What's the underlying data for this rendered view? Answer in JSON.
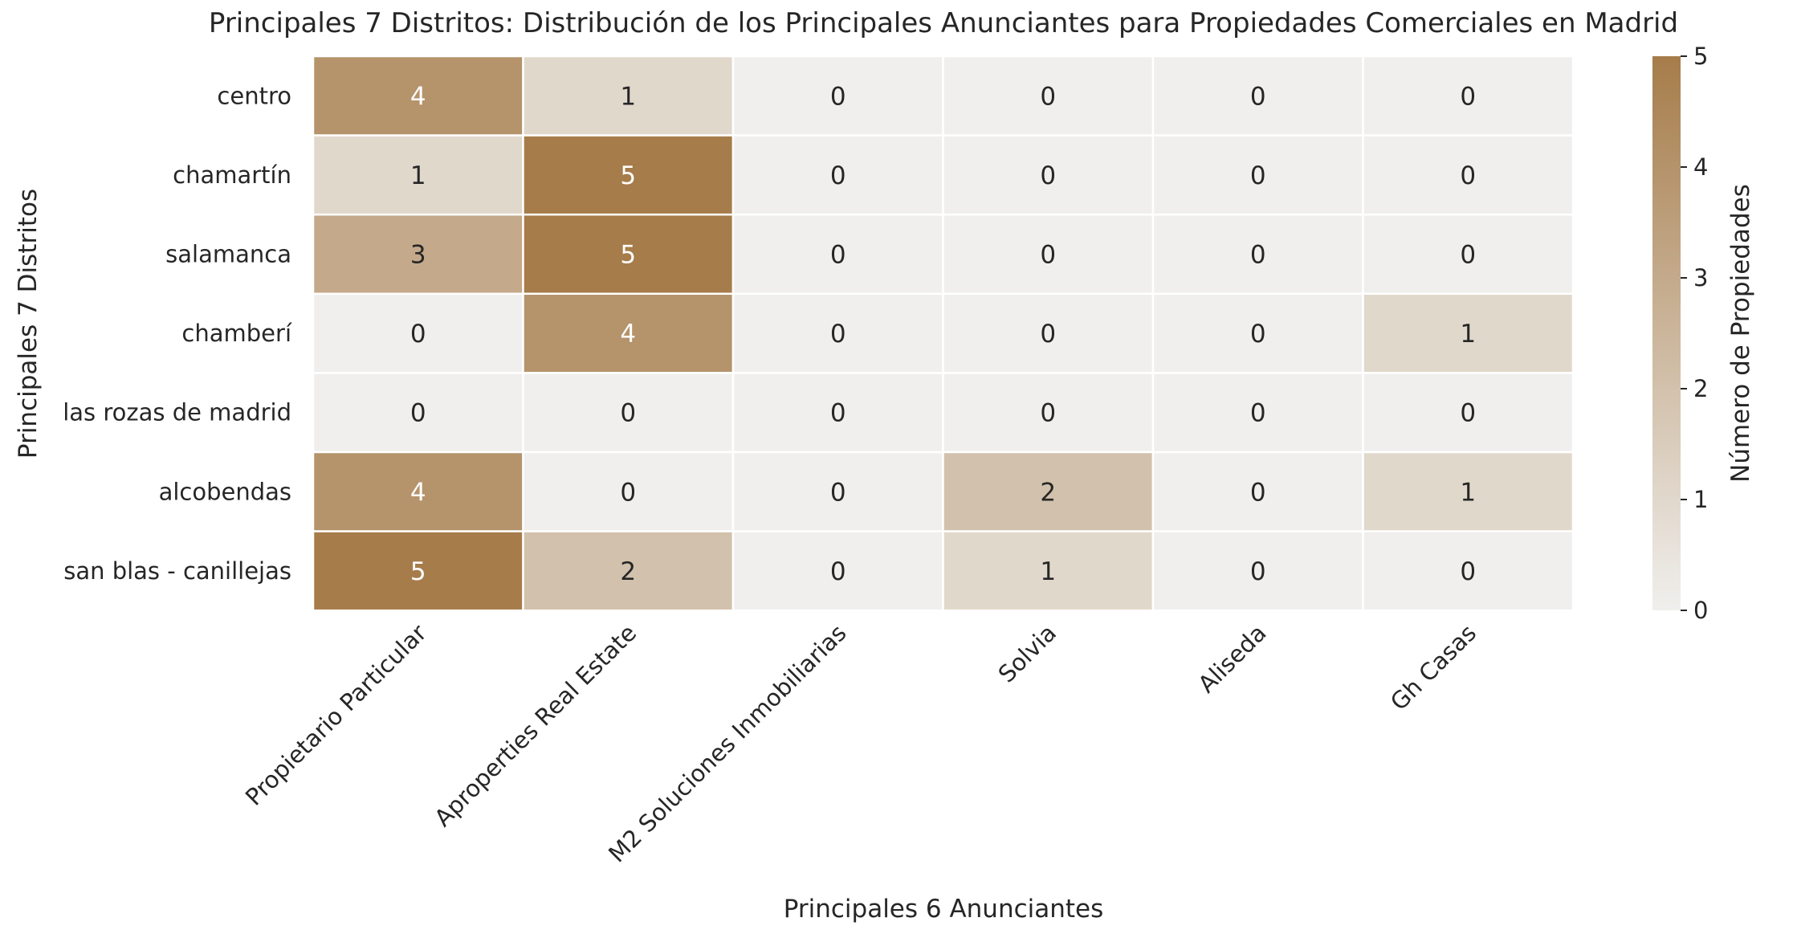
{
  "chart_data": {
    "type": "heatmap",
    "title": "Principales 7 Distritos: Distribución de los Principales Anunciantes para Propiedades Comerciales en Madrid",
    "xlabel": "Principales 6 Anunciantes",
    "ylabel": "Principales 7 Distritos",
    "x_categories": [
      "Propietario Particular",
      "Aproperties Real Estate",
      "M2 Soluciones Inmobiliarias",
      "Solvia",
      "Aliseda",
      "Gh Casas"
    ],
    "y_categories": [
      "centro",
      "chamartín",
      "salamanca",
      "chamberí",
      "las rozas de madrid",
      "alcobendas",
      "san blas - canillejas"
    ],
    "values": [
      [
        4,
        1,
        0,
        0,
        0,
        0
      ],
      [
        1,
        5,
        0,
        0,
        0,
        0
      ],
      [
        3,
        5,
        0,
        0,
        0,
        0
      ],
      [
        0,
        4,
        0,
        0,
        0,
        1
      ],
      [
        0,
        0,
        0,
        0,
        0,
        0
      ],
      [
        4,
        0,
        0,
        2,
        0,
        1
      ],
      [
        5,
        2,
        0,
        1,
        0,
        0
      ]
    ],
    "colorbar": {
      "label": "Número de Propiedades",
      "range": [
        0,
        5
      ],
      "ticks": [
        "0",
        "1",
        "2",
        "3",
        "4",
        "5"
      ]
    },
    "colors": {
      "low": "#f0efed",
      "high": "#a67c4a"
    },
    "annotations": true
  }
}
